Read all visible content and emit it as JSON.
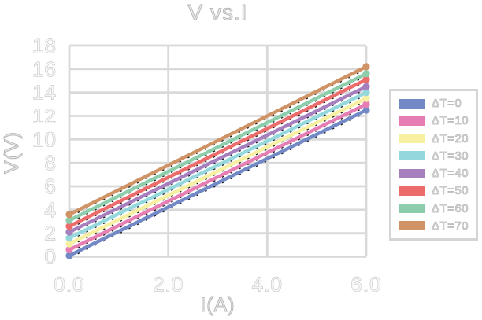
{
  "chart_data": {
    "type": "line",
    "title": "V vs.I",
    "xlabel": "I(A)",
    "ylabel": "V(V)",
    "x": [
      0,
      6
    ],
    "xlim": [
      0,
      6
    ],
    "ylim": [
      0,
      18
    ],
    "xticks": {
      "values": [
        0,
        2,
        4,
        6
      ],
      "labels": [
        "0.0",
        "2.0",
        "4.0",
        "6.0"
      ]
    },
    "yticks": {
      "values": [
        0,
        2,
        4,
        6,
        8,
        10,
        12,
        14,
        16,
        18
      ],
      "labels": [
        "0",
        "2",
        "4",
        "6",
        "8",
        "10",
        "12",
        "14",
        "16",
        "18"
      ]
    },
    "grid": true,
    "legend_position": "right-outside",
    "marker": "circle-at-endpoints",
    "line_underlay": "sparse black dashes along lines",
    "series": [
      {
        "name": "ΔT=0",
        "color": "#7289c6",
        "values": [
          0.1,
          12.5
        ]
      },
      {
        "name": "ΔT=10",
        "color": "#e67eb3",
        "values": [
          0.6,
          13.0
        ]
      },
      {
        "name": "ΔT=20",
        "color": "#f6f0a0",
        "values": [
          1.1,
          13.5
        ]
      },
      {
        "name": "ΔT=30",
        "color": "#94d8dd",
        "values": [
          1.6,
          14.0
        ]
      },
      {
        "name": "ΔT=40",
        "color": "#a67fbe",
        "values": [
          2.1,
          14.5
        ]
      },
      {
        "name": "ΔT=50",
        "color": "#ec6c6c",
        "values": [
          2.6,
          15.1
        ]
      },
      {
        "name": "ΔT=60",
        "color": "#8cceac",
        "values": [
          3.1,
          15.6
        ]
      },
      {
        "name": "ΔT=70",
        "color": "#cf9366",
        "values": [
          3.6,
          16.2
        ]
      }
    ]
  },
  "style": {
    "background": "#ffffff",
    "grid_color": "#d9d9d9",
    "text_fill": "#f6f6f6",
    "text_outline": "#b9b9b9",
    "legend_border": "#d5d5d5"
  }
}
